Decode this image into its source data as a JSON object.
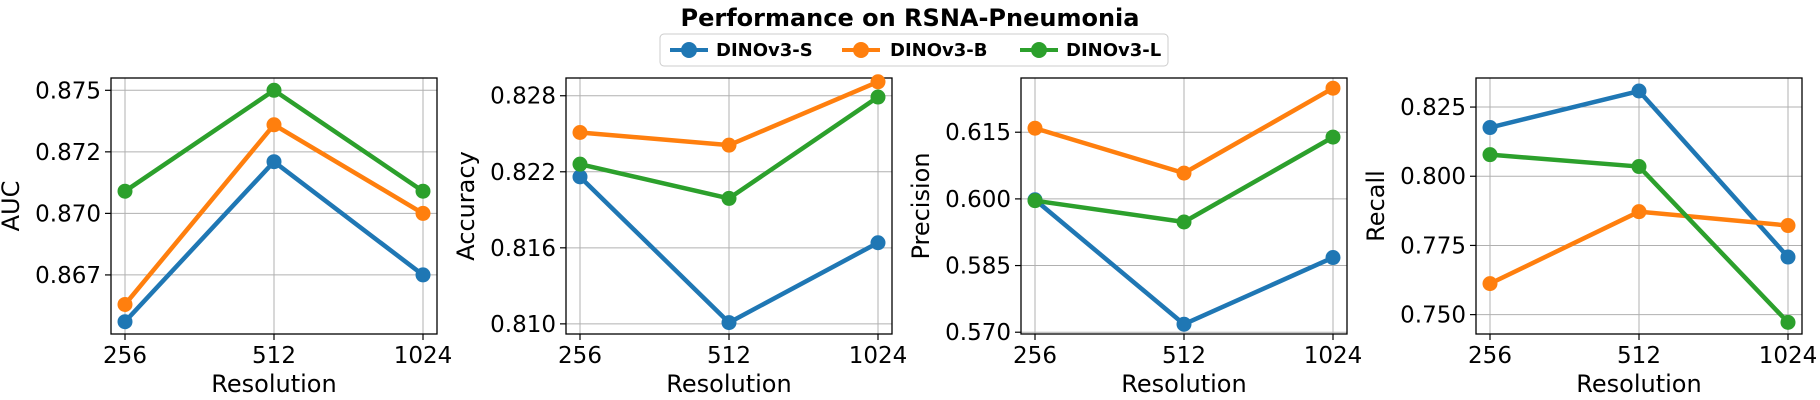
{
  "chart_data": {
    "type": "line",
    "title": "Performance on RSNA-Pneumonia",
    "legend_position": "top-center",
    "series_names": [
      "DINOv3-S",
      "DINOv3-B",
      "DINOv3-L"
    ],
    "colors": {
      "DINOv3-S": "#1f77b4",
      "DINOv3-B": "#ff7f0e",
      "DINOv3-L": "#2ca02c"
    },
    "grid": true,
    "panels": [
      {
        "xlabel": "Resolution",
        "ylabel": "AUC",
        "categories": [
          "256",
          "512",
          "1024"
        ],
        "ylim": [
          0.8651,
          0.8755
        ],
        "yticks": [
          0.8675,
          0.87,
          0.8725,
          0.875
        ],
        "ytick_labels": [
          "0.867",
          "0.870",
          "0.872",
          "0.875"
        ],
        "series": [
          {
            "name": "DINOv3-S",
            "values": [
              0.8656,
              0.8721,
              0.8675
            ]
          },
          {
            "name": "DINOv3-B",
            "values": [
              0.8663,
              0.8736,
              0.87
            ]
          },
          {
            "name": "DINOv3-L",
            "values": [
              0.8709,
              0.875,
              0.8709
            ]
          }
        ]
      },
      {
        "xlabel": "Resolution",
        "ylabel": "Accuracy",
        "categories": [
          "256",
          "512",
          "1024"
        ],
        "ylim": [
          0.8092,
          0.8294
        ],
        "yticks": [
          0.81,
          0.816,
          0.822,
          0.828
        ],
        "ytick_labels": [
          "0.810",
          "0.816",
          "0.822",
          "0.828"
        ],
        "series": [
          {
            "name": "DINOv3-S",
            "values": [
              0.8216,
              0.8101,
              0.8164
            ]
          },
          {
            "name": "DINOv3-B",
            "values": [
              0.8251,
              0.8241,
              0.8291
            ]
          },
          {
            "name": "DINOv3-L",
            "values": [
              0.8226,
              0.8199,
              0.8279
            ]
          }
        ]
      },
      {
        "xlabel": "Resolution",
        "ylabel": "Precision",
        "categories": [
          "256",
          "512",
          "1024"
        ],
        "ylim": [
          0.5696,
          0.6272
        ],
        "yticks": [
          0.57,
          0.585,
          0.6,
          0.615
        ],
        "ytick_labels": [
          "0.570",
          "0.585",
          "0.600",
          "0.615"
        ],
        "series": [
          {
            "name": "DINOv3-S",
            "values": [
              0.5998,
              0.5718,
              0.5868
            ]
          },
          {
            "name": "DINOv3-B",
            "values": [
              0.6159,
              0.6058,
              0.6249
            ]
          },
          {
            "name": "DINOv3-L",
            "values": [
              0.5996,
              0.5948,
              0.6139
            ]
          }
        ]
      },
      {
        "xlabel": "Resolution",
        "ylabel": "Recall",
        "categories": [
          "256",
          "512",
          "1024"
        ],
        "ylim": [
          0.743,
          0.8355
        ],
        "yticks": [
          0.75,
          0.775,
          0.8,
          0.825
        ],
        "ytick_labels": [
          "0.750",
          "0.775",
          "0.800",
          "0.825"
        ],
        "series": [
          {
            "name": "DINOv3-S",
            "values": [
              0.8176,
              0.8308,
              0.7708
            ]
          },
          {
            "name": "DINOv3-B",
            "values": [
              0.7612,
              0.7872,
              0.7822
            ]
          },
          {
            "name": "DINOv3-L",
            "values": [
              0.8078,
              0.8035,
              0.7472
            ]
          }
        ]
      }
    ]
  }
}
